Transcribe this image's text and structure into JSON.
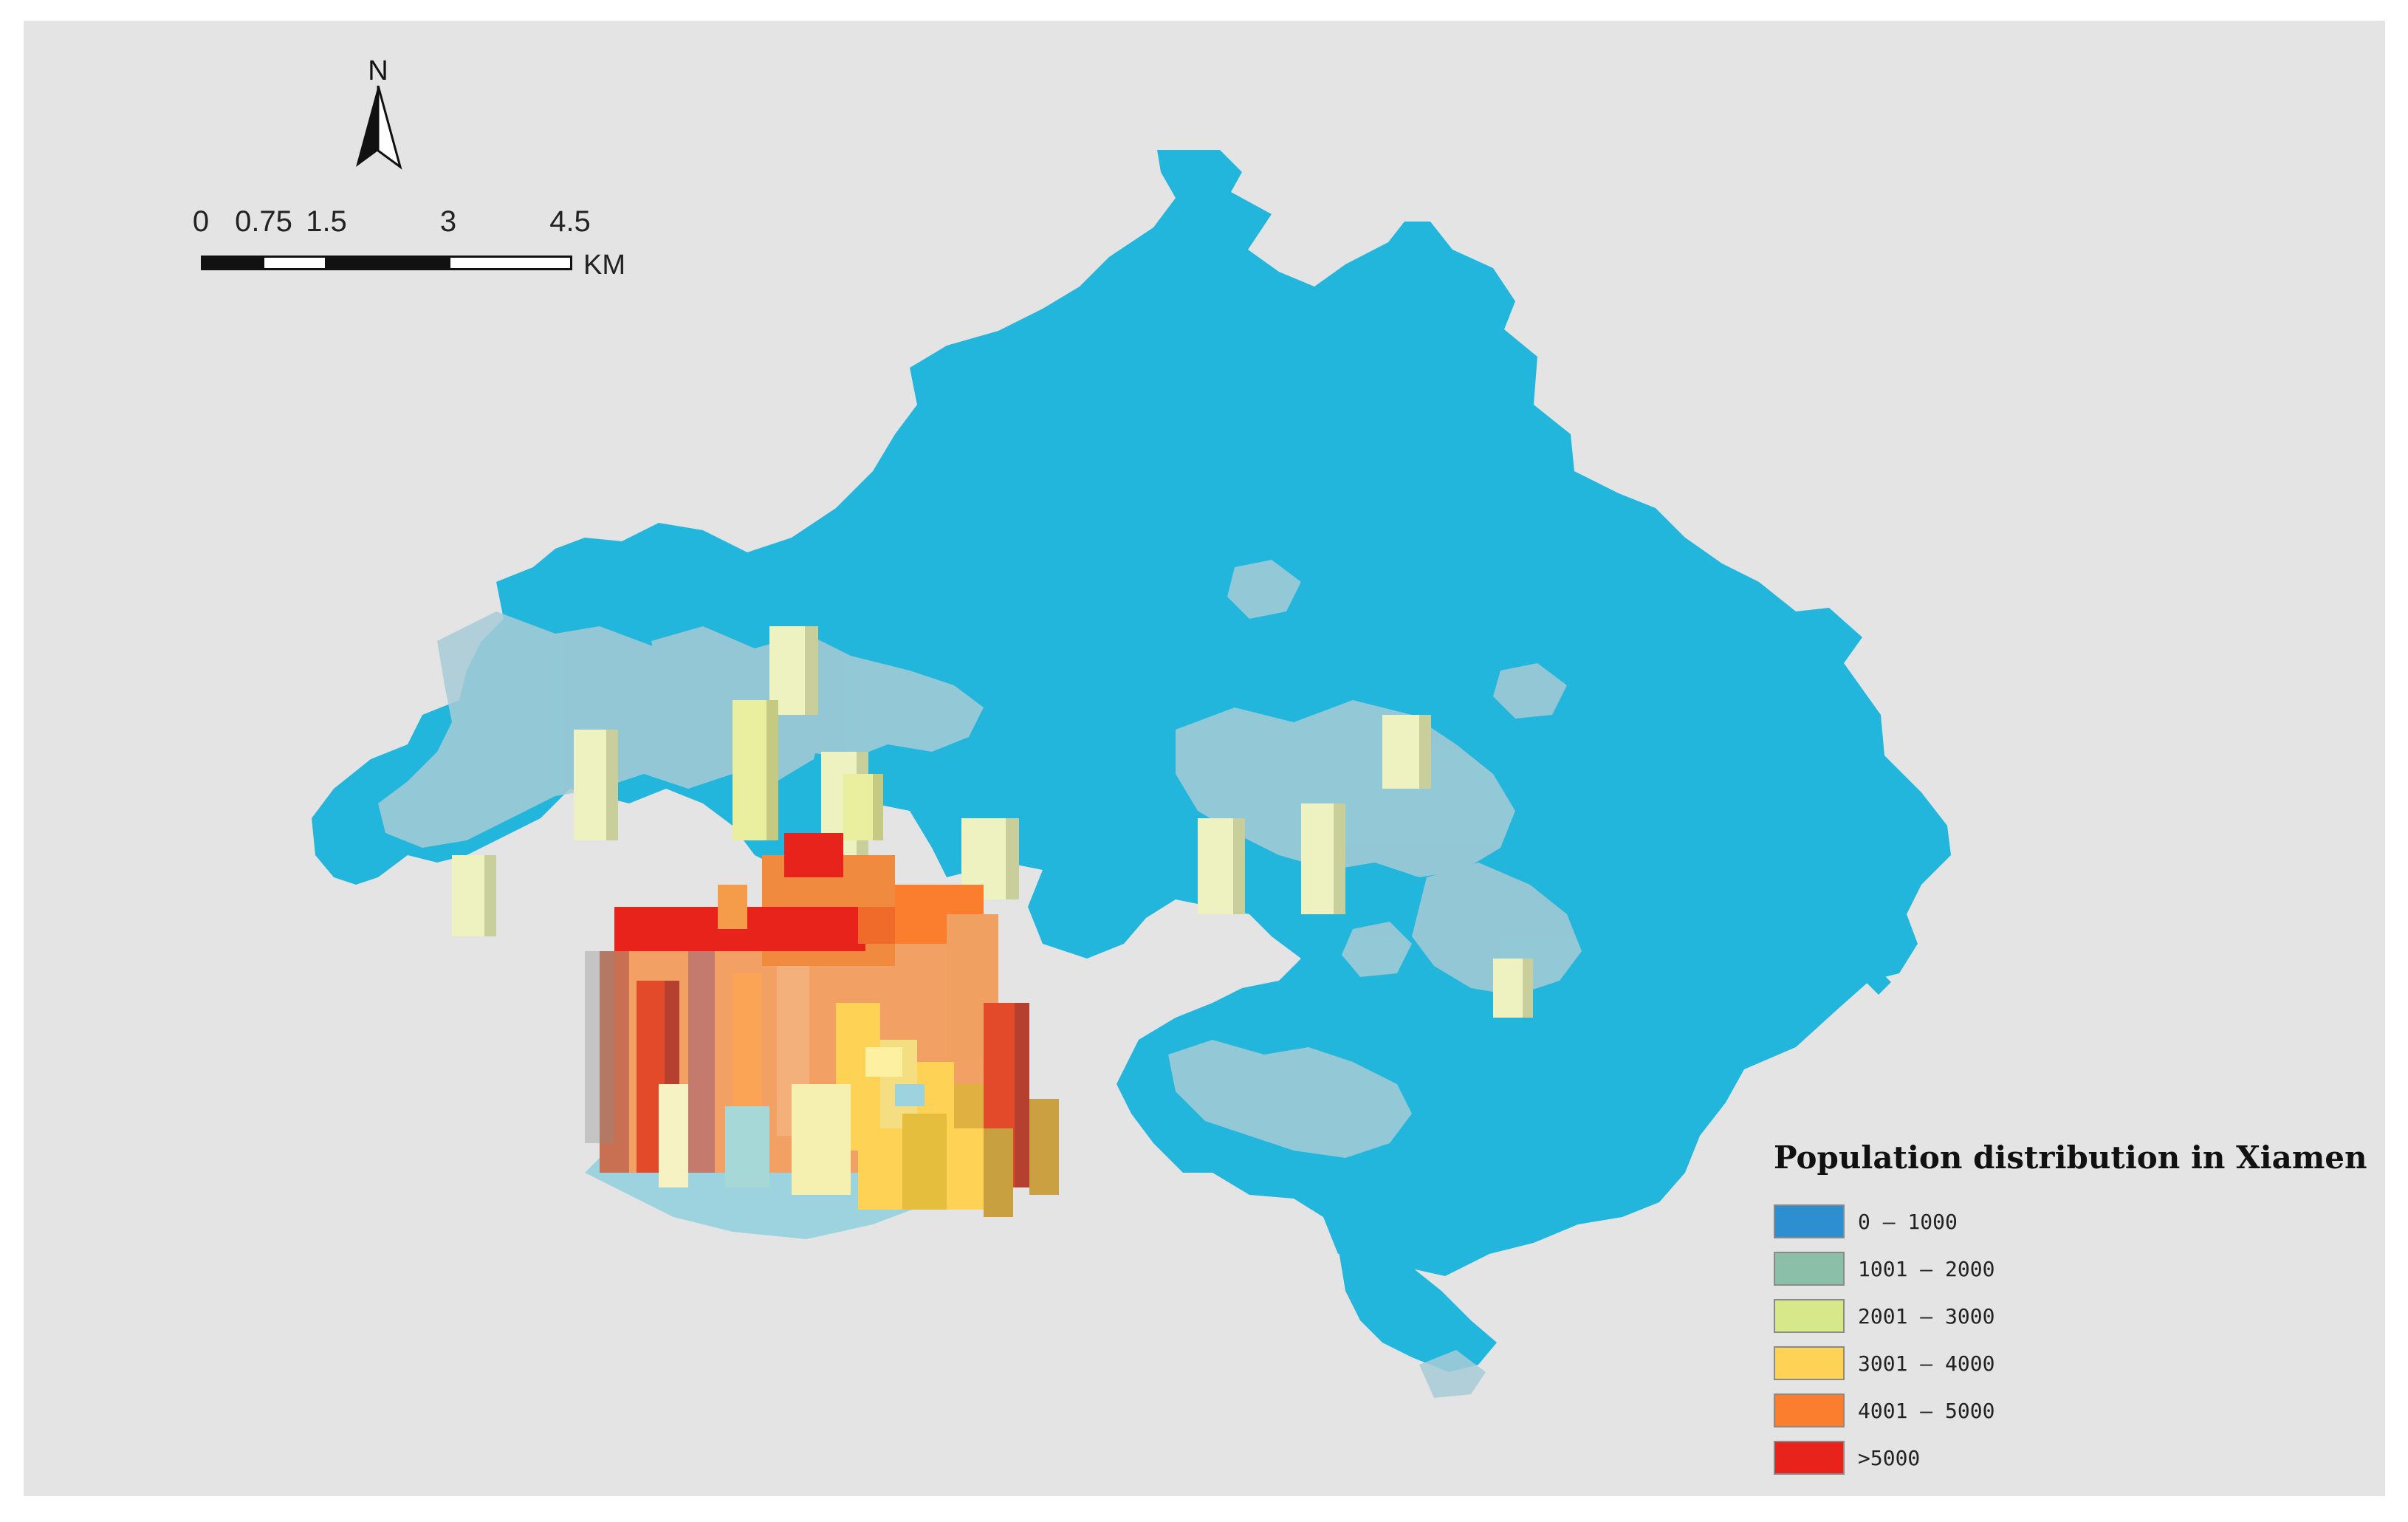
{
  "north_arrow": {
    "letter": "N",
    "icon": "north-arrow-icon"
  },
  "scale_bar": {
    "labels": [
      "0",
      "0.75",
      "1.5",
      "3",
      "4.5"
    ],
    "unit": "KM",
    "values_km": [
      0,
      0.75,
      1.5,
      3,
      4.5
    ]
  },
  "legend": {
    "title": "Population distribution in Xiamen",
    "items": [
      {
        "label": "0 – 1000",
        "color": "#2e8fd0"
      },
      {
        "label": "1001 – 2000",
        "color": "#8cbfa8"
      },
      {
        "label": "2001 – 3000",
        "color": "#d6e88a"
      },
      {
        "label": "3001 – 4000",
        "color": "#fdd255"
      },
      {
        "label": "4001 – 5000",
        "color": "#fb7e2f"
      },
      {
        "label": ">5000",
        "color": "#e8231c"
      }
    ]
  },
  "colors": {
    "map_background": "#e4e4e4",
    "base_region": "#22b6dc",
    "low_density_tiles": "#a7cbd6"
  }
}
